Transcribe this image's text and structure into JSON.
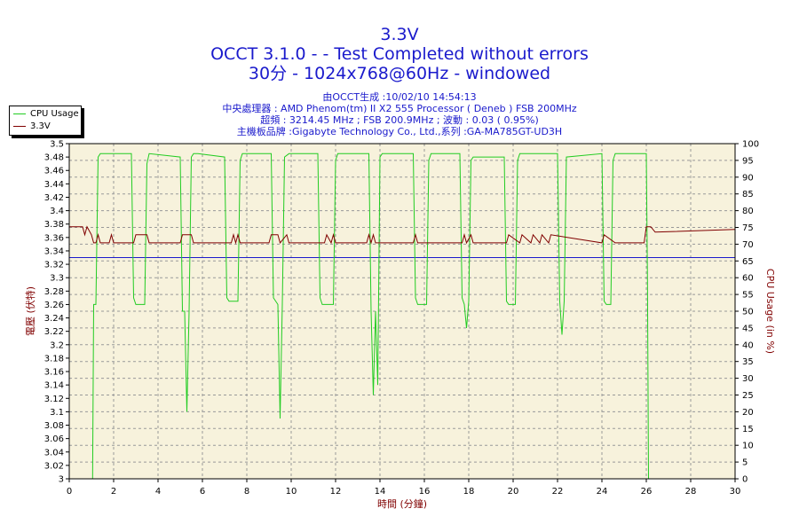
{
  "header": {
    "title": "3.3V",
    "subtitle": "OCCT 3.1.0 -  - Test Completed without errors",
    "config": "30分 - 1024x768@60Hz - windowed",
    "generated": "由OCCT生成 :10/02/10 14:54:13",
    "cpu": "中央處理器 : AMD Phenom(tm) II X2 555 Processor ( Deneb ) FSB 200MHz",
    "freq": "超頻 : 3214.45 MHz ; FSB 200.9MHz ; 波動 : 0.03 ( 0.95%)",
    "board": "主機板品牌 :Gigabyte Technology Co., Ltd.,系列 :GA-MA785GT-UD3H"
  },
  "colors": {
    "cpu": "#22cc22",
    "volt": "#800000",
    "title": "#1a1acc",
    "plot_bg": "#f7f2dc",
    "hline": "#1a1acc"
  },
  "chart_data": {
    "type": "line",
    "xlabel": "時間 (分鐘)",
    "ylabel_left": "電壓 (伏特)",
    "ylabel_right": "CPU Usage (in %)",
    "xlim": [
      0,
      30
    ],
    "ylim_left": [
      3.0,
      3.5
    ],
    "ylim_right": [
      0,
      100
    ],
    "x_ticks": [
      "0",
      "2",
      "4",
      "6",
      "8",
      "10",
      "12",
      "14",
      "16",
      "18",
      "20",
      "22",
      "24",
      "26",
      "28",
      "30"
    ],
    "y_left_ticks": [
      "3",
      "3.02",
      "3.04",
      "3.06",
      "3.08",
      "3.1",
      "3.12",
      "3.14",
      "3.16",
      "3.18",
      "3.2",
      "3.22",
      "3.24",
      "3.26",
      "3.28",
      "3.3",
      "3.32",
      "3.34",
      "3.36",
      "3.38",
      "3.4",
      "3.42",
      "3.44",
      "3.46",
      "3.48",
      "3.5"
    ],
    "y_right_ticks": [
      "0",
      "5",
      "10",
      "15",
      "20",
      "25",
      "30",
      "35",
      "40",
      "45",
      "50",
      "55",
      "60",
      "65",
      "70",
      "75",
      "80",
      "85",
      "90",
      "95",
      "100"
    ],
    "grid": true,
    "legend_position": "top-left",
    "series": [
      {
        "name": "CPU Usage",
        "axis": "right",
        "x": [
          0,
          1.0,
          1.05,
          1.1,
          1.2,
          1.3,
          1.4,
          2.8,
          2.9,
          3.0,
          3.4,
          3.5,
          3.6,
          5.0,
          5.1,
          5.2,
          5.3,
          5.4,
          5.5,
          5.6,
          5.8,
          7.0,
          7.1,
          7.2,
          7.6,
          7.7,
          7.8,
          9.1,
          9.2,
          9.4,
          9.5,
          9.6,
          9.7,
          9.9,
          11.2,
          11.3,
          11.4,
          11.9,
          12.0,
          12.1,
          13.5,
          13.6,
          13.7,
          13.8,
          13.9,
          14.0,
          14.1,
          15.5,
          15.6,
          15.7,
          16.1,
          16.2,
          16.3,
          17.6,
          17.7,
          17.8,
          17.9,
          18.0,
          18.1,
          18.2,
          19.6,
          19.7,
          19.8,
          20.1,
          20.2,
          20.3,
          22.0,
          22.1,
          22.2,
          22.3,
          22.4,
          24.0,
          24.1,
          24.2,
          24.4,
          24.5,
          24.6,
          26.0,
          26.05,
          26.1,
          30
        ],
        "values": [
          0,
          0,
          0,
          52,
          52,
          96,
          97,
          97,
          54,
          52,
          52,
          94,
          97,
          96,
          50,
          50,
          20,
          50,
          96,
          97,
          97,
          96,
          54,
          53,
          53,
          95,
          97,
          97,
          54,
          52,
          18,
          52,
          96,
          97,
          97,
          54,
          52,
          52,
          95,
          97,
          97,
          50,
          25,
          50,
          28,
          96,
          97,
          97,
          54,
          52,
          52,
          95,
          97,
          97,
          54,
          52,
          45,
          53,
          95,
          96,
          96,
          53,
          52,
          52,
          95,
          97,
          97,
          53,
          43,
          53,
          96,
          97,
          53,
          52,
          52,
          95,
          97,
          97,
          60,
          0,
          0
        ]
      },
      {
        "name": "3.3V",
        "axis": "left",
        "x": [
          0,
          0.6,
          0.7,
          0.8,
          1.0,
          1.1,
          1.2,
          1.3,
          1.4,
          1.8,
          1.9,
          2.0,
          2.9,
          3.0,
          3.5,
          3.6,
          5.0,
          5.1,
          5.5,
          5.6,
          7.3,
          7.4,
          7.5,
          7.6,
          7.7,
          9.0,
          9.1,
          9.4,
          9.5,
          9.8,
          9.9,
          11.5,
          11.6,
          11.8,
          11.9,
          12.0,
          12.1,
          13.4,
          13.5,
          13.6,
          13.7,
          13.8,
          14.0,
          15.5,
          15.6,
          15.7,
          15.8,
          17.7,
          17.8,
          17.9,
          18.1,
          18.2,
          19.7,
          19.8,
          20.3,
          20.4,
          20.8,
          20.9,
          21.2,
          21.3,
          21.6,
          21.7,
          24.0,
          24.1,
          24.6,
          24.7,
          25.9,
          26.0,
          26.2,
          26.4,
          30
        ],
        "values": [
          3.376,
          3.376,
          3.364,
          3.376,
          3.364,
          3.352,
          3.352,
          3.364,
          3.352,
          3.352,
          3.364,
          3.352,
          3.352,
          3.364,
          3.364,
          3.352,
          3.352,
          3.364,
          3.364,
          3.352,
          3.352,
          3.364,
          3.352,
          3.364,
          3.352,
          3.352,
          3.364,
          3.364,
          3.352,
          3.364,
          3.352,
          3.352,
          3.364,
          3.352,
          3.364,
          3.352,
          3.352,
          3.352,
          3.364,
          3.352,
          3.364,
          3.352,
          3.352,
          3.352,
          3.364,
          3.352,
          3.352,
          3.352,
          3.364,
          3.352,
          3.364,
          3.352,
          3.352,
          3.364,
          3.352,
          3.364,
          3.352,
          3.364,
          3.352,
          3.364,
          3.352,
          3.364,
          3.352,
          3.364,
          3.352,
          3.352,
          3.352,
          3.376,
          3.376,
          3.368,
          3.372
        ]
      }
    ],
    "reference_line": 3.33
  }
}
